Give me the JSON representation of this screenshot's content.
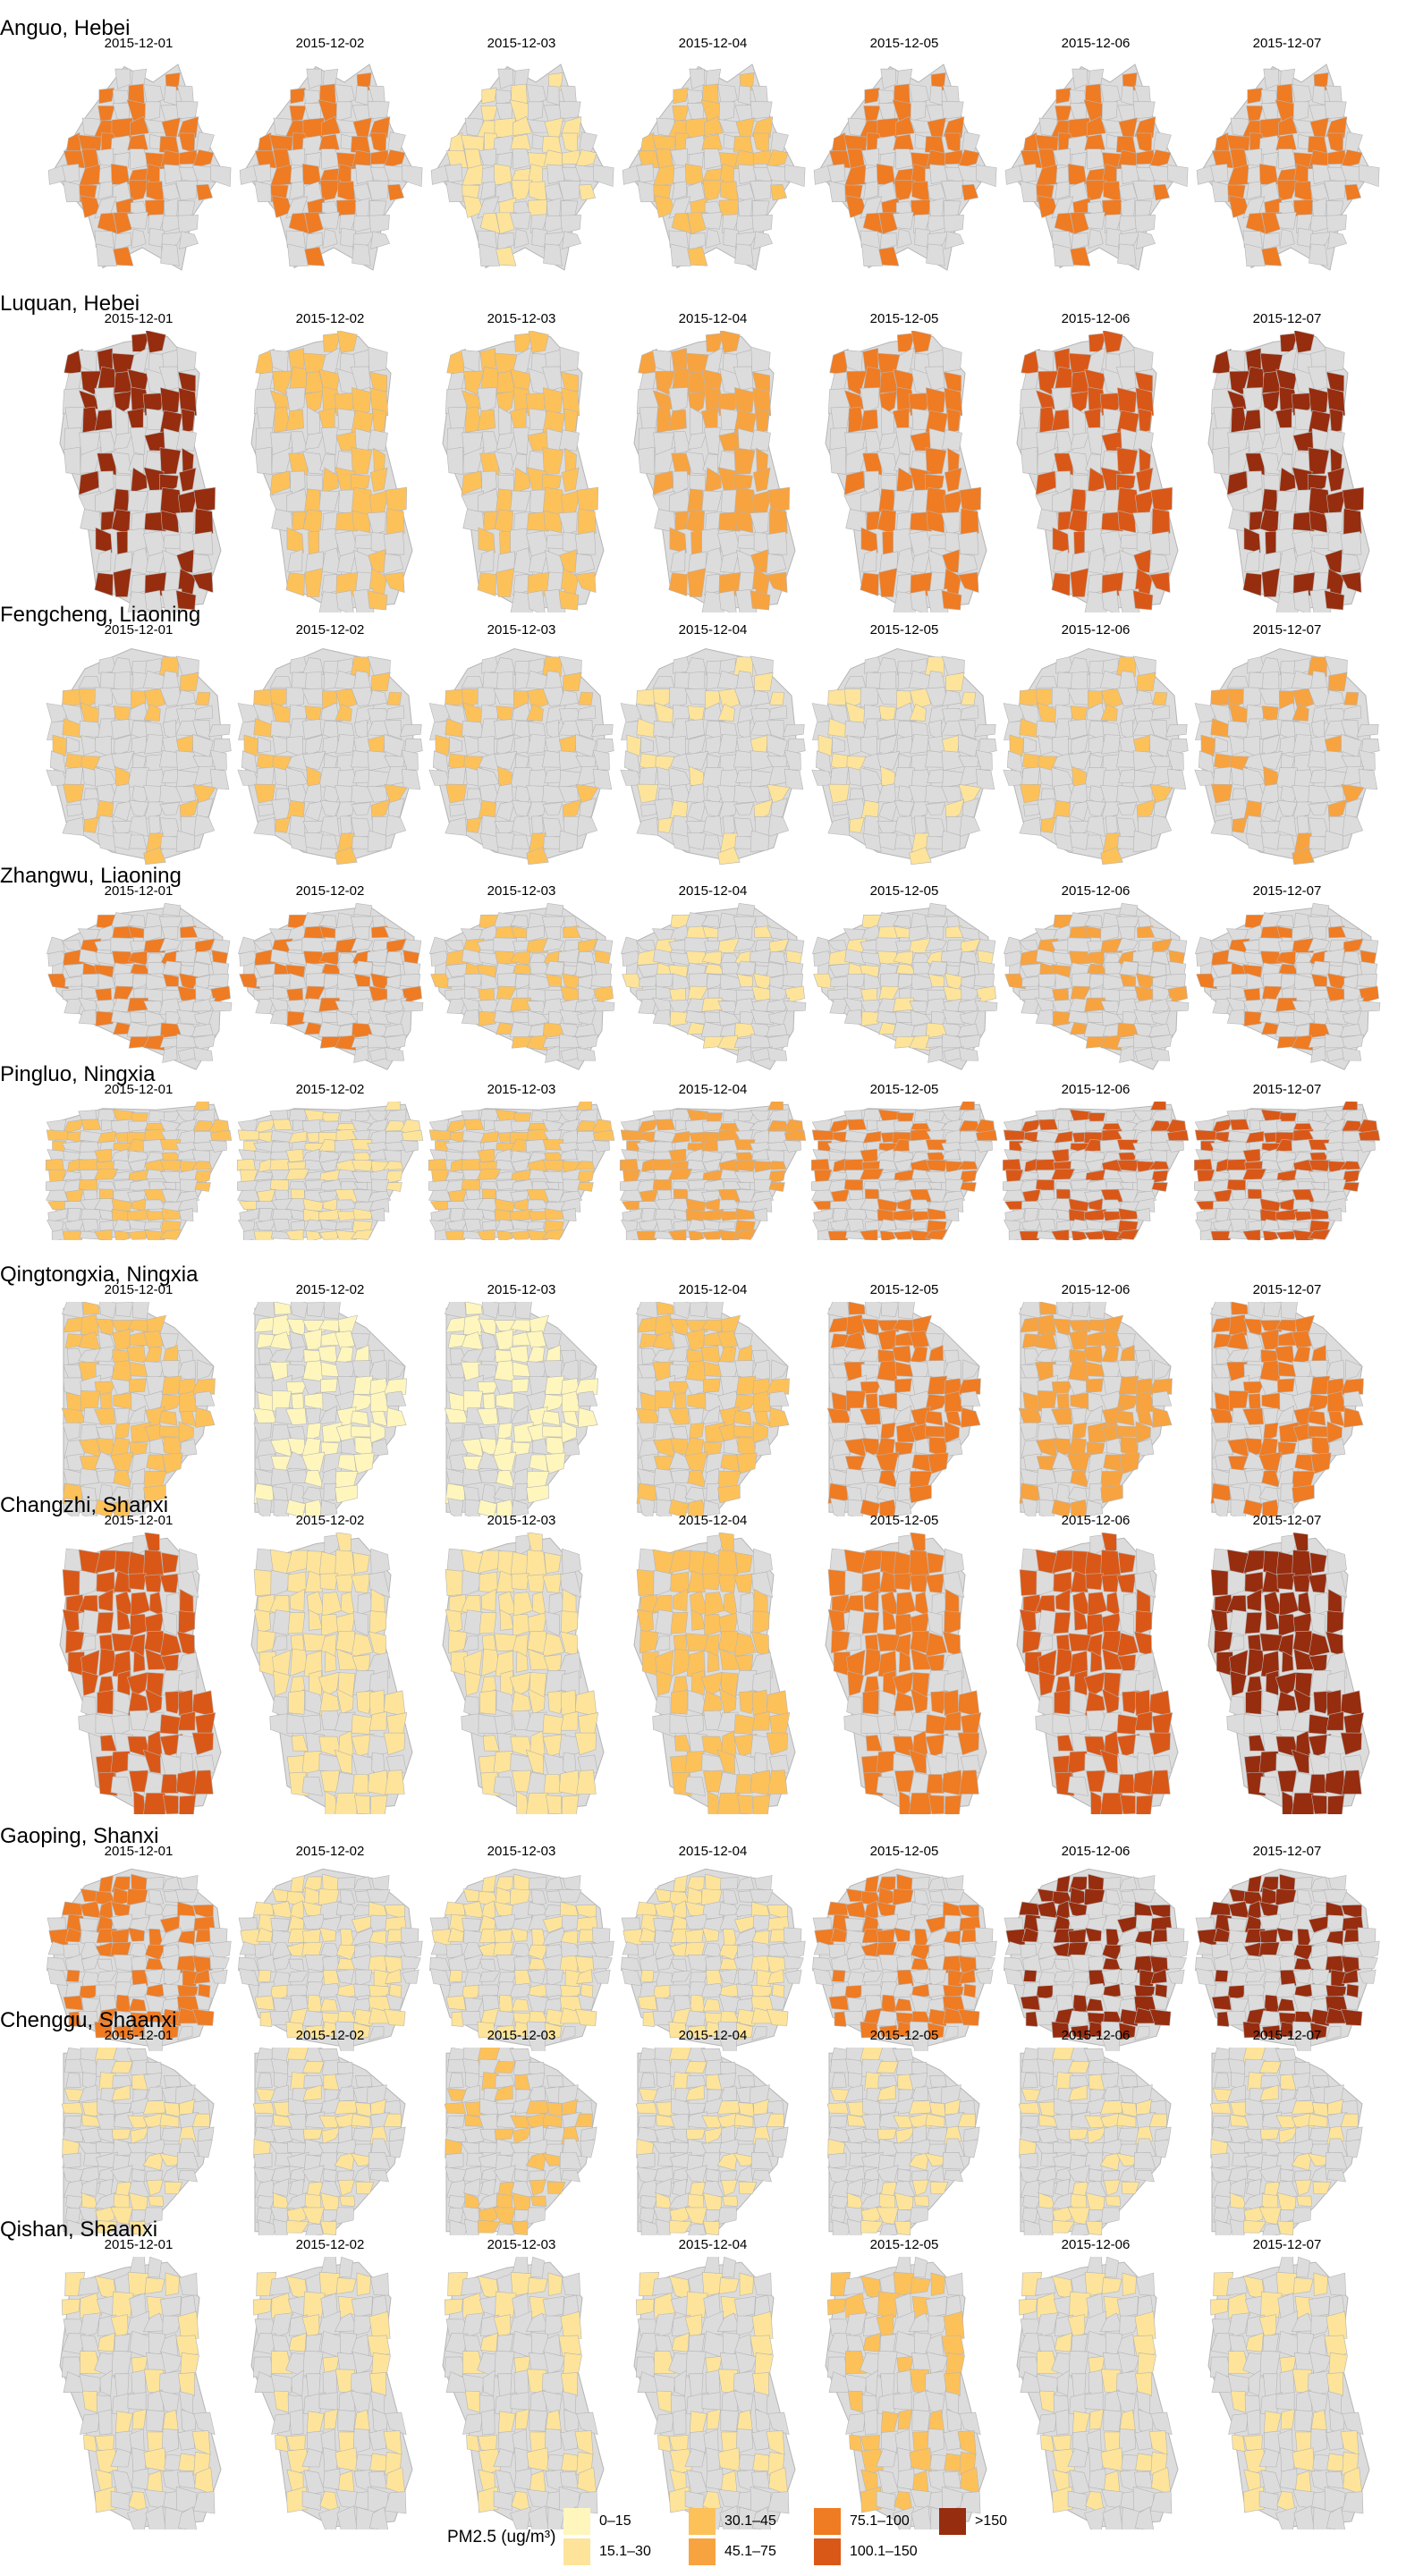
{
  "chart_data": {
    "type": "choropleth-small-multiples",
    "dates": [
      "2015-12-01",
      "2015-12-02",
      "2015-12-03",
      "2015-12-04",
      "2015-12-05",
      "2015-12-06",
      "2015-12-07"
    ],
    "regions": [
      {
        "name": "Anguo, Hebei",
        "shape": "star",
        "fill_fraction": 0.45,
        "class_by_date": [
          4,
          4,
          1,
          2,
          4,
          4,
          4
        ]
      },
      {
        "name": "Luquan, Hebei",
        "shape": "tall",
        "fill_fraction": 0.45,
        "class_by_date": [
          6,
          2,
          2,
          3,
          4,
          5,
          6
        ]
      },
      {
        "name": "Fengcheng, Liaoning",
        "shape": "wide",
        "fill_fraction": 0.25,
        "class_by_date": [
          2,
          2,
          2,
          1,
          1,
          2,
          3
        ]
      },
      {
        "name": "Zhangwu, Liaoning",
        "shape": "wedge",
        "fill_fraction": 0.35,
        "class_by_date": [
          4,
          4,
          2,
          1,
          1,
          3,
          4
        ]
      },
      {
        "name": "Pingluo, Ningxia",
        "shape": "strip",
        "fill_fraction": 0.45,
        "class_by_date": [
          2,
          1,
          2,
          3,
          4,
          5,
          5
        ]
      },
      {
        "name": "Qingtongxia, Ningxia",
        "shape": "block",
        "fill_fraction": 0.5,
        "class_by_date": [
          2,
          0,
          0,
          2,
          4,
          3,
          4
        ]
      },
      {
        "name": "Changzhi, Shanxi",
        "shape": "tall",
        "fill_fraction": 0.7,
        "class_by_date": [
          5,
          1,
          1,
          2,
          4,
          5,
          6
        ]
      },
      {
        "name": "Gaoping, Shanxi",
        "shape": "wide",
        "fill_fraction": 0.45,
        "class_by_date": [
          4,
          1,
          1,
          1,
          4,
          6,
          6
        ]
      },
      {
        "name": "Chenggu, Shaanxi",
        "shape": "block",
        "fill_fraction": 0.3,
        "class_by_date": [
          1,
          1,
          2,
          1,
          1,
          1,
          1
        ]
      },
      {
        "name": "Qishan, Shaanxi",
        "shape": "tall",
        "fill_fraction": 0.35,
        "class_by_date": [
          1,
          1,
          1,
          1,
          2,
          1,
          1
        ]
      }
    ],
    "legend": {
      "title": "PM2.5 (ug/m³)",
      "classes": [
        {
          "label": "0–15",
          "color": "#fff6bd"
        },
        {
          "label": "15.1–30",
          "color": "#fde49a"
        },
        {
          "label": "30.1–45",
          "color": "#fdc15a"
        },
        {
          "label": "45.1–75",
          "color": "#f7a340"
        },
        {
          "label": "75.1–100",
          "color": "#ef7b23"
        },
        {
          "label": "100.1–150",
          "color": "#d95818"
        },
        {
          "label": ">150",
          "color": "#962d0f"
        }
      ]
    },
    "background_color": "#dcdcdc",
    "border_color": "#b5b5b5"
  }
}
